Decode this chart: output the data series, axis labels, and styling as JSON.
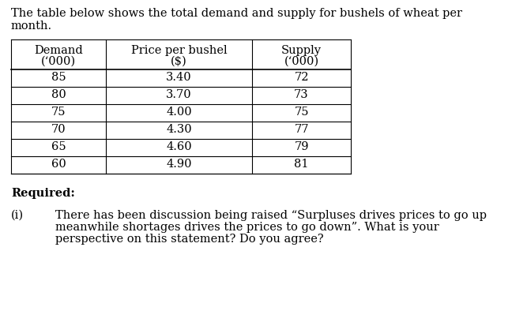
{
  "intro_line1": "The table below shows the total demand and supply for bushels of wheat per",
  "intro_line2": "month.",
  "col_headers_line1": [
    "Demand",
    "Price per bushel",
    "Supply"
  ],
  "col_headers_line2": [
    "(‘000)",
    "($)",
    "(‘000)"
  ],
  "table_data": [
    [
      "85",
      "3.40",
      "72"
    ],
    [
      "80",
      "3.70",
      "73"
    ],
    [
      "75",
      "4.00",
      "75"
    ],
    [
      "70",
      "4.30",
      "77"
    ],
    [
      "65",
      "4.60",
      "79"
    ],
    [
      "60",
      "4.90",
      "81"
    ]
  ],
  "required_label": "Required:",
  "question_number": "(i)",
  "question_lines": [
    "There has been discussion being raised “Surpluses drives prices to go up",
    "meanwhile shortages drives the prices to go down”. What is your",
    "perspective on this statement? Do you agree?"
  ],
  "bg_color": "#ffffff",
  "text_color": "#000000",
  "font_size": 10.5
}
